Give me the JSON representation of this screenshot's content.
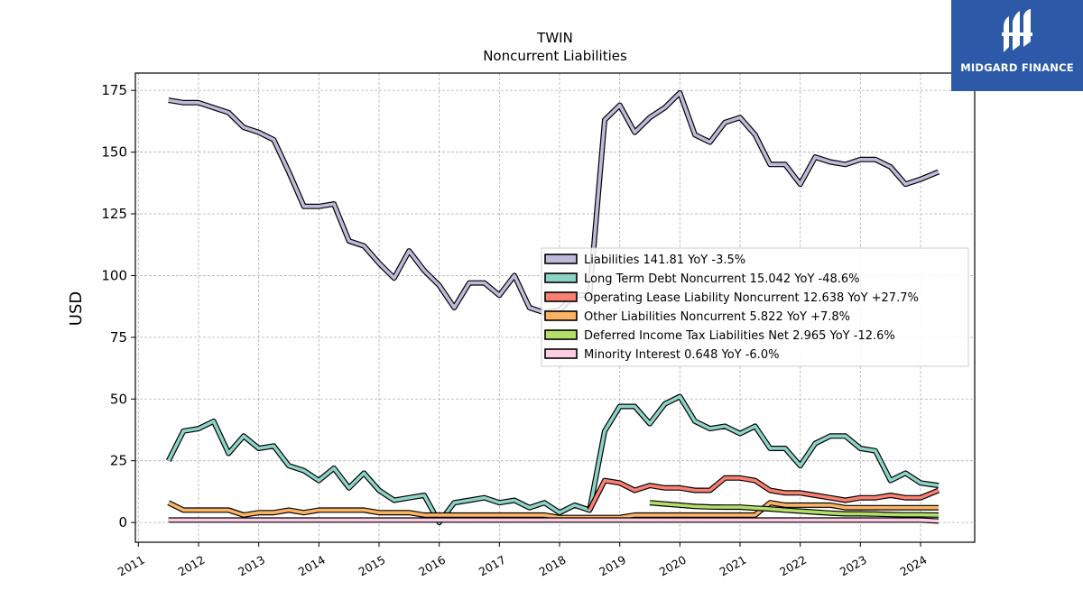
{
  "brand": {
    "name": "MIDGARD FINANCE",
    "logo_icon": "midgard-logo-icon",
    "color": "#2c5aa8"
  },
  "chart_data": {
    "type": "line",
    "title": "TWIN",
    "subtitle": "Noncurrent  Liabilities",
    "ylabel": "USD",
    "xlabel": "",
    "ylim": [
      -8,
      182
    ],
    "xlim": [
      2010.95,
      2024.9
    ],
    "yticks": [
      0,
      25,
      50,
      75,
      100,
      125,
      150,
      175
    ],
    "xticks": [
      2011,
      2012,
      2013,
      2014,
      2015,
      2016,
      2017,
      2018,
      2019,
      2020,
      2021,
      2022,
      2023,
      2024
    ],
    "grid": true,
    "legend_position": "center-right",
    "series": [
      {
        "name": "Liabilities",
        "legend_label": "Liabilities  141.81 YoY -3.5%",
        "color": "#bebada",
        "points": [
          [
            2011.5,
            171
          ],
          [
            2011.75,
            170
          ],
          [
            2012.0,
            170
          ],
          [
            2012.25,
            168
          ],
          [
            2012.5,
            166
          ],
          [
            2012.75,
            160
          ],
          [
            2013.0,
            158
          ],
          [
            2013.25,
            155
          ],
          [
            2013.5,
            142
          ],
          [
            2013.75,
            128
          ],
          [
            2014.0,
            128
          ],
          [
            2014.25,
            129
          ],
          [
            2014.5,
            114
          ],
          [
            2014.75,
            112
          ],
          [
            2015.0,
            105
          ],
          [
            2015.25,
            99
          ],
          [
            2015.5,
            110
          ],
          [
            2015.75,
            102
          ],
          [
            2016.0,
            96
          ],
          [
            2016.25,
            87
          ],
          [
            2016.5,
            97
          ],
          [
            2016.75,
            97
          ],
          [
            2017.0,
            92
          ],
          [
            2017.25,
            100
          ],
          [
            2017.5,
            87
          ],
          [
            2017.75,
            85
          ],
          [
            2018.0,
            86
          ],
          [
            2018.25,
            92
          ],
          [
            2018.5,
            92
          ],
          [
            2018.75,
            163
          ],
          [
            2019.0,
            169
          ],
          [
            2019.25,
            158
          ],
          [
            2019.5,
            164
          ],
          [
            2019.75,
            168
          ],
          [
            2020.0,
            174
          ],
          [
            2020.25,
            157
          ],
          [
            2020.5,
            154
          ],
          [
            2020.75,
            162
          ],
          [
            2021.0,
            164
          ],
          [
            2021.25,
            157
          ],
          [
            2021.5,
            145
          ],
          [
            2021.75,
            145
          ],
          [
            2022.0,
            137
          ],
          [
            2022.25,
            148
          ],
          [
            2022.5,
            146
          ],
          [
            2022.75,
            145
          ],
          [
            2023.0,
            147
          ],
          [
            2023.25,
            147
          ],
          [
            2023.5,
            144
          ],
          [
            2023.75,
            137
          ],
          [
            2024.0,
            139
          ],
          [
            2024.3,
            142
          ]
        ]
      },
      {
        "name": "Long Term Debt Noncurrent",
        "legend_label": "Long Term Debt Noncurrent  15.042 YoY -48.6%",
        "color": "#8dd3c7",
        "points": [
          [
            2011.5,
            25
          ],
          [
            2011.75,
            37
          ],
          [
            2012.0,
            38
          ],
          [
            2012.25,
            41
          ],
          [
            2012.5,
            28
          ],
          [
            2012.75,
            35
          ],
          [
            2013.0,
            30
          ],
          [
            2013.25,
            31
          ],
          [
            2013.5,
            23
          ],
          [
            2013.75,
            21
          ],
          [
            2014.0,
            17
          ],
          [
            2014.25,
            22
          ],
          [
            2014.5,
            14
          ],
          [
            2014.75,
            20
          ],
          [
            2015.0,
            13
          ],
          [
            2015.25,
            9
          ],
          [
            2015.5,
            10
          ],
          [
            2015.75,
            11
          ],
          [
            2016.0,
            0
          ],
          [
            2016.25,
            8
          ],
          [
            2016.5,
            9
          ],
          [
            2016.75,
            10
          ],
          [
            2017.0,
            8
          ],
          [
            2017.25,
            9
          ],
          [
            2017.5,
            6
          ],
          [
            2017.75,
            8
          ],
          [
            2018.0,
            4
          ],
          [
            2018.25,
            7
          ],
          [
            2018.5,
            5
          ],
          [
            2018.75,
            37
          ],
          [
            2019.0,
            47
          ],
          [
            2019.25,
            47
          ],
          [
            2019.5,
            40
          ],
          [
            2019.75,
            48
          ],
          [
            2020.0,
            51
          ],
          [
            2020.25,
            41
          ],
          [
            2020.5,
            38
          ],
          [
            2020.75,
            39
          ],
          [
            2021.0,
            36
          ],
          [
            2021.25,
            39
          ],
          [
            2021.5,
            30
          ],
          [
            2021.75,
            30
          ],
          [
            2022.0,
            23
          ],
          [
            2022.25,
            32
          ],
          [
            2022.5,
            35
          ],
          [
            2022.75,
            35
          ],
          [
            2023.0,
            30
          ],
          [
            2023.25,
            29
          ],
          [
            2023.5,
            17
          ],
          [
            2023.75,
            20
          ],
          [
            2024.0,
            16
          ],
          [
            2024.3,
            15
          ]
        ]
      },
      {
        "name": "Operating Lease Liability Noncurrent",
        "legend_label": "Operating Lease Liability Noncurrent  12.638 YoY +27.7%",
        "color": "#fb8072",
        "points": [
          [
            2018.5,
            5
          ],
          [
            2018.75,
            17
          ],
          [
            2019.0,
            16
          ],
          [
            2019.25,
            13
          ],
          [
            2019.5,
            15
          ],
          [
            2019.75,
            14
          ],
          [
            2020.0,
            14
          ],
          [
            2020.25,
            13
          ],
          [
            2020.5,
            13
          ],
          [
            2020.75,
            18
          ],
          [
            2021.0,
            18
          ],
          [
            2021.25,
            17
          ],
          [
            2021.5,
            13
          ],
          [
            2021.75,
            12
          ],
          [
            2022.0,
            12
          ],
          [
            2022.25,
            11
          ],
          [
            2022.5,
            10
          ],
          [
            2022.75,
            9
          ],
          [
            2023.0,
            10
          ],
          [
            2023.25,
            10
          ],
          [
            2023.5,
            11
          ],
          [
            2023.75,
            10
          ],
          [
            2024.0,
            10
          ],
          [
            2024.3,
            13
          ]
        ]
      },
      {
        "name": "Other Liabilities Noncurrent",
        "legend_label": "Other Liabilities Noncurrent  5.822 YoY +7.8%",
        "color": "#fdb462",
        "points": [
          [
            2011.5,
            8
          ],
          [
            2011.75,
            5
          ],
          [
            2012.0,
            5
          ],
          [
            2012.25,
            5
          ],
          [
            2012.5,
            5
          ],
          [
            2012.75,
            3
          ],
          [
            2013.0,
            4
          ],
          [
            2013.25,
            4
          ],
          [
            2013.5,
            5
          ],
          [
            2013.75,
            4
          ],
          [
            2014.0,
            5
          ],
          [
            2014.25,
            5
          ],
          [
            2014.5,
            5
          ],
          [
            2014.75,
            5
          ],
          [
            2015.0,
            4
          ],
          [
            2015.25,
            4
          ],
          [
            2015.5,
            4
          ],
          [
            2015.75,
            3
          ],
          [
            2016.0,
            3
          ],
          [
            2016.25,
            3
          ],
          [
            2016.5,
            3
          ],
          [
            2016.75,
            3
          ],
          [
            2017.0,
            3
          ],
          [
            2017.25,
            3
          ],
          [
            2017.5,
            3
          ],
          [
            2017.75,
            3
          ],
          [
            2018.0,
            2
          ],
          [
            2018.25,
            2
          ],
          [
            2018.5,
            2
          ],
          [
            2018.75,
            2
          ],
          [
            2019.0,
            2
          ],
          [
            2019.25,
            3
          ],
          [
            2019.5,
            3
          ],
          [
            2019.75,
            3
          ],
          [
            2020.0,
            3
          ],
          [
            2020.25,
            3
          ],
          [
            2020.5,
            3
          ],
          [
            2020.75,
            3
          ],
          [
            2021.0,
            3
          ],
          [
            2021.25,
            3
          ],
          [
            2021.5,
            8
          ],
          [
            2021.75,
            7
          ],
          [
            2022.0,
            7
          ],
          [
            2022.25,
            7
          ],
          [
            2022.5,
            7
          ],
          [
            2022.75,
            6
          ],
          [
            2023.0,
            6
          ],
          [
            2023.25,
            6
          ],
          [
            2023.5,
            6
          ],
          [
            2023.75,
            6
          ],
          [
            2024.0,
            6
          ],
          [
            2024.3,
            6
          ]
        ]
      },
      {
        "name": "Deferred Income Tax Liabilities Net",
        "legend_label": "Deferred Income Tax Liabilities Net  2.965 YoY -12.6%",
        "color": "#b3de69",
        "points": [
          [
            2019.5,
            8
          ],
          [
            2019.75,
            7.5
          ],
          [
            2020.0,
            7
          ],
          [
            2020.25,
            6.5
          ],
          [
            2020.5,
            6.3
          ],
          [
            2020.75,
            6.2
          ],
          [
            2021.0,
            6.2
          ],
          [
            2021.25,
            5.8
          ],
          [
            2021.5,
            5.5
          ],
          [
            2021.75,
            5
          ],
          [
            2022.0,
            4.6
          ],
          [
            2022.25,
            4.2
          ],
          [
            2022.5,
            3.8
          ],
          [
            2022.75,
            3.5
          ],
          [
            2023.0,
            3.5
          ],
          [
            2023.25,
            3.4
          ],
          [
            2023.5,
            3.2
          ],
          [
            2023.75,
            3.1
          ],
          [
            2024.0,
            3.1
          ],
          [
            2024.3,
            3
          ]
        ]
      },
      {
        "name": "Minority Interest",
        "legend_label": "Minority Interest  0.648 YoY -6.0%",
        "color": "#fccde5",
        "points": [
          [
            2011.5,
            1
          ],
          [
            2012.0,
            1
          ],
          [
            2012.5,
            1
          ],
          [
            2013.0,
            1
          ],
          [
            2013.5,
            1
          ],
          [
            2014.0,
            1
          ],
          [
            2014.5,
            1
          ],
          [
            2015.0,
            1
          ],
          [
            2015.5,
            1
          ],
          [
            2016.0,
            1
          ],
          [
            2016.5,
            1
          ],
          [
            2017.0,
            1
          ],
          [
            2017.5,
            1
          ],
          [
            2018.0,
            1
          ],
          [
            2018.5,
            1
          ],
          [
            2019.0,
            1
          ],
          [
            2019.5,
            1
          ],
          [
            2020.0,
            1
          ],
          [
            2020.5,
            1
          ],
          [
            2021.0,
            1
          ],
          [
            2021.5,
            1
          ],
          [
            2022.0,
            1
          ],
          [
            2022.5,
            1
          ],
          [
            2023.0,
            1
          ],
          [
            2023.5,
            1
          ],
          [
            2024.0,
            1
          ],
          [
            2024.3,
            0.6
          ]
        ]
      }
    ]
  }
}
